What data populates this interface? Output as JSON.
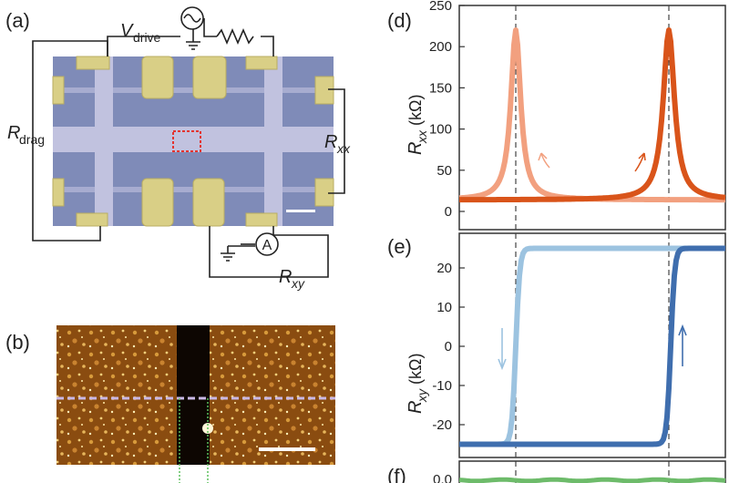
{
  "panels": {
    "a": "(a)",
    "b": "(b)",
    "d": "(d)",
    "e": "(e)",
    "f": "(f)"
  },
  "schematic": {
    "v_drive_main": "V",
    "v_drive_sub": "drive",
    "r_drag_main": "R",
    "r_drag_sub": "drag",
    "r_xx_main": "R",
    "r_xx_sub": "xx",
    "r_xy_main": "R",
    "r_xy_sub": "xy",
    "ammeter": "A"
  },
  "colors": {
    "rxx_light": "#f2a07f",
    "rxx_dark": "#d9541a",
    "rxy_light": "#9cc3e0",
    "rxy_dark": "#3f6eae",
    "device_bg": "#7f8bb8",
    "contact": "#d9cf86",
    "afm_bg": "#8a4c10"
  },
  "chart_data": [
    {
      "type": "line",
      "panel": "(d)",
      "ylabel_main": "R",
      "ylabel_sub": "xx",
      "ylabel_unit": "(kΩ)",
      "ylim": [
        -20,
        250
      ],
      "yticks": [
        0,
        50,
        100,
        150,
        200,
        250
      ],
      "ytick_labels": [
        "0",
        "50",
        "100",
        "150",
        "200",
        "250"
      ],
      "dashed_lines": "two vertical dashed lines through the peaks",
      "series": [
        {
          "name": "sweep-down",
          "color": "#f2a07f",
          "peak_value": 220,
          "baseline_value": 18
        },
        {
          "name": "sweep-up",
          "color": "#d9541a",
          "peak_value": 220,
          "baseline_value": 20
        }
      ]
    },
    {
      "type": "line",
      "panel": "(e)",
      "ylabel_main": "R",
      "ylabel_sub": "xy",
      "ylabel_unit": "(kΩ)",
      "ylim": [
        -28,
        28
      ],
      "yticks": [
        20,
        10,
        0,
        -10,
        -20
      ],
      "ytick_labels": [
        "20",
        "10",
        "0",
        "-10",
        "-20"
      ],
      "series": [
        {
          "name": "sweep-down",
          "color": "#9cc3e0",
          "low": -25,
          "high": 25
        },
        {
          "name": "sweep-up",
          "color": "#3f6eae",
          "low": -25,
          "high": 25
        }
      ]
    },
    {
      "type": "line",
      "panel": "(f)",
      "ytick_labels": [
        "0.0"
      ],
      "series": [
        {
          "name": "drag",
          "color": "#6dbb6a",
          "value": 0.0
        }
      ]
    }
  ]
}
